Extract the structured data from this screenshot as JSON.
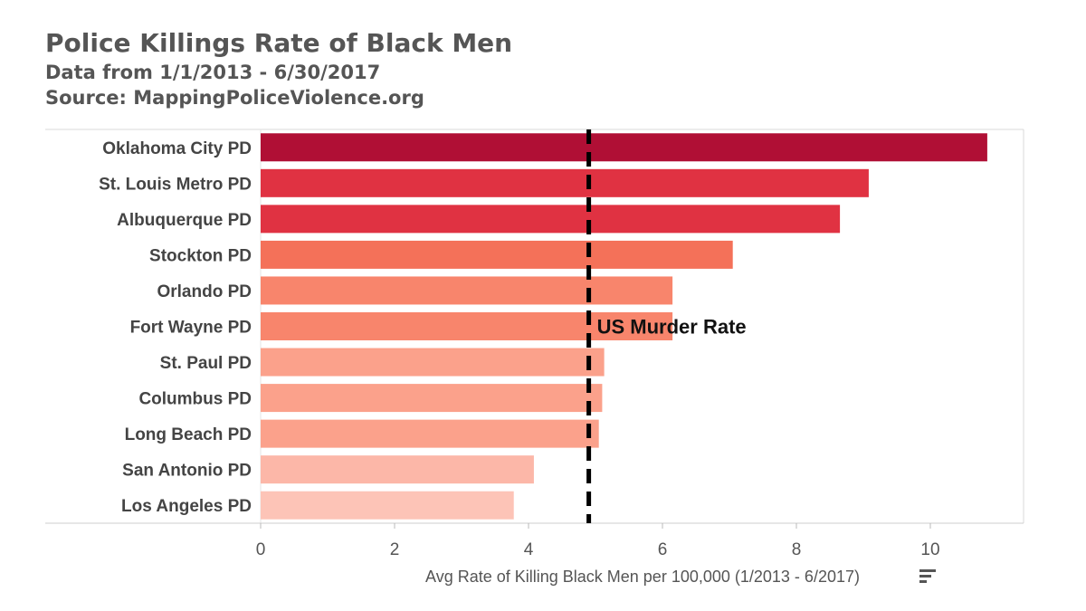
{
  "header": {
    "title": "Police Killings Rate of Black Men",
    "subtitle_dates": "Data from 1/1/2013 - 6/30/2017",
    "subtitle_source": "Source: MappingPoliceViolence.org"
  },
  "chart_data": {
    "type": "bar",
    "orientation": "horizontal",
    "categories": [
      "Oklahoma City PD",
      "St. Louis Metro PD",
      "Albuquerque PD",
      "Stockton PD",
      "Orlando PD",
      "Fort Wayne PD",
      "St. Paul PD",
      "Columbus PD",
      "Long Beach PD",
      "San Antonio PD",
      "Los Angeles PD"
    ],
    "values": [
      10.85,
      9.08,
      8.65,
      7.05,
      6.15,
      6.15,
      5.13,
      5.1,
      5.05,
      4.08,
      3.78
    ],
    "colors": [
      "#b00f35",
      "#e03242",
      "#e03242",
      "#f47159",
      "#f8856c",
      "#f8856c",
      "#fba18b",
      "#fba18b",
      "#fba18b",
      "#fcb7a8",
      "#fdc4b7"
    ],
    "xlabel": "Avg Rate of Killing Black Men per 100,000 (1/2013 - 6/2017)",
    "ylabel": "",
    "xlim": [
      0,
      11.5
    ],
    "xticks": [
      0,
      2,
      4,
      6,
      8,
      10
    ],
    "reference_line": {
      "value": 4.9,
      "label": "US Murder Rate",
      "style": "dashed"
    },
    "grid": false,
    "sort_icon": "sort-descending-icon"
  }
}
